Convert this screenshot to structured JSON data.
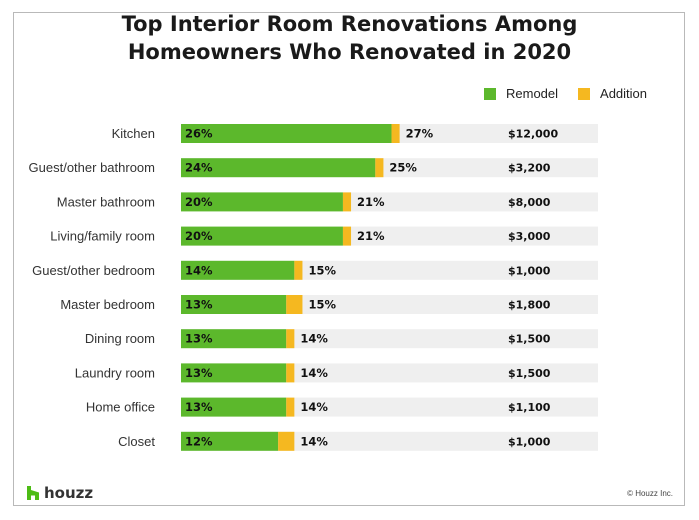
{
  "chart_data": {
    "type": "bar",
    "title_lines": [
      "Top Interior Room Renovations Among",
      "Homeowners Who Renovated in 2020"
    ],
    "categories": [
      "Kitchen",
      "Guest/other bathroom",
      "Master bathroom",
      "Living/family room",
      "Guest/other bedroom",
      "Master bedroom",
      "Dining room",
      "Laundry room",
      "Home office",
      "Closet"
    ],
    "series": [
      {
        "name": "Remodel",
        "values": [
          26,
          24,
          20,
          20,
          14,
          13,
          13,
          13,
          13,
          12
        ],
        "color": "#5cb82c"
      },
      {
        "name": "Addition",
        "values": [
          1,
          1,
          1,
          1,
          1,
          2,
          1,
          1,
          1,
          2
        ],
        "color": "#f5b820"
      }
    ],
    "totals": [
      27,
      25,
      21,
      21,
      15,
      15,
      14,
      14,
      14,
      14
    ],
    "costs": [
      "$12,000",
      "$3,200",
      "$8,000",
      "$3,000",
      "$1,000",
      "$1,800",
      "$1,500",
      "$1,500",
      "$1,100",
      "$1,000"
    ],
    "stacked": true,
    "xlim": [
      0,
      51.5
    ],
    "legend_position": "top-right",
    "track_color": "#efefef"
  },
  "footer": {
    "logo_text": "houzz",
    "copyright": "© Houzz Inc."
  }
}
